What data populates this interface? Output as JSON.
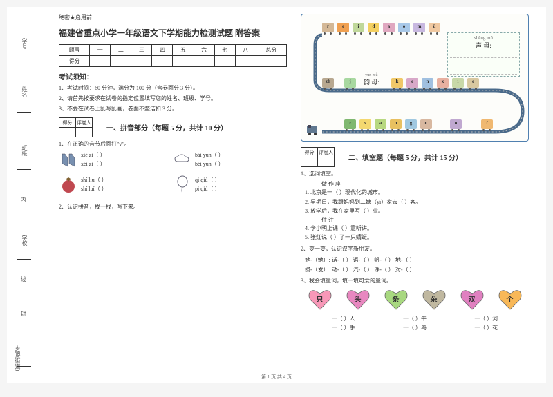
{
  "meta": {
    "secret": "绝密★启用前",
    "title": "福建省重点小学一年级语文下学期能力检测试题 附答案",
    "footer": "第 1 页 共 4 页"
  },
  "spine": {
    "labels": [
      "学号",
      "姓名",
      "班级",
      "内",
      "学校",
      "线",
      "封",
      "乡镇(街道)"
    ]
  },
  "score_table": {
    "headers": [
      "题号",
      "一",
      "二",
      "三",
      "四",
      "五",
      "六",
      "七",
      "八",
      "总分"
    ],
    "row_label": "得分"
  },
  "notice": {
    "title": "考试须知：",
    "items": [
      "1、考试时间：60 分钟，满分为 100 分（含卷面分 3 分）。",
      "2、请首先按要求在试卷的指定位置填写您的姓名、班级、学号。",
      "3、不要在试卷上乱写乱画，卷面不整洁扣 3 分。"
    ]
  },
  "mini_score": {
    "c1": "得分",
    "c2": "评卷人"
  },
  "section1": {
    "title": "一、拼音部分（每题 5 分，共计 10 分）",
    "q1": "1、在正确的音节后面打\"√\"。",
    "items": [
      {
        "a": "xié  zi（      ）",
        "b": "bái  yún（      ）"
      },
      {
        "a": "xéi  zi（      ）",
        "b": "béi  yún（      ）"
      },
      {
        "a": "shí  liu（      ）",
        "b": "qì  qiú（      ）"
      },
      {
        "a": "shí  luí（      ）",
        "b": "pì  qiú（      ）"
      }
    ],
    "q2": "2、认识拼音，找一找，写下来。"
  },
  "train": {
    "top_letters": [
      "r",
      "e",
      "i",
      "d",
      "a",
      "o",
      "m",
      "ü"
    ],
    "mid_letters": [
      "zh",
      "j",
      "k",
      "e",
      "n",
      "x",
      "i",
      "e"
    ],
    "bot_letters": [
      "z",
      "s",
      "a",
      "n",
      "g",
      "u",
      "o",
      "f"
    ],
    "top_colors": [
      "#d4b896",
      "#f0a050",
      "#c0d89a",
      "#f4d060",
      "#e0a8c0",
      "#a8c8e8",
      "#c8b8e0",
      "#f0c8a0"
    ],
    "mid_colors": [
      "#b8a890",
      "#a8d8a0",
      "#f0c868",
      "#d8a8c8",
      "#a0c0e0",
      "#e8b0a0",
      "#c8d8a8",
      "#d8c8a0"
    ],
    "bot_colors": [
      "#80b870",
      "#f4d870",
      "#b8d880",
      "#e8c060",
      "#a0c8e0",
      "#d8b8a0",
      "#c0a8d0",
      "#f0b870"
    ],
    "shengmu_title": "声 母:",
    "shengmu_py": "shēng mǔ",
    "yunmu_title": "韵 母:",
    "yunmu_py": "yùn mǔ"
  },
  "section2": {
    "title": "二、填空题（每题 5 分，共计 15 分）",
    "q1": "1、选词填空。",
    "q1_words": "做         作       座",
    "q1_items": [
      "1. 北京是一（      ）现代化的城市。",
      "2. 星期日，我跟妈妈到二姨（yí）家去（      ）客。",
      "3. 放学后，我在家里写（      ）业。"
    ],
    "q1_words2": "住       注",
    "q1_items2": [
      "4. 李小明上课（      ）意听讲。",
      "5. 张红说（      ）了一只蜻蜓。"
    ],
    "q2": "2、变一变，认识汉字新朋友。",
    "q2_lines": [
      "她-（她）: 话-（      ）  语-（      ）  帆-（      ）  地-（      ）",
      "拔-（发）: 动-（      ）  汽-（      ）  课-（      ）  对-（      ）"
    ],
    "q3": "3、我会填量词，填一填可爱的量词。"
  },
  "hearts": {
    "labels": [
      "只",
      "头",
      "条",
      "朵",
      "双",
      "个"
    ],
    "colors": [
      "#f898b8",
      "#e888c0",
      "#a8d880",
      "#c0b8a0",
      "#e080c0",
      "#f8b858"
    ]
  },
  "measures": {
    "row1": [
      "一（      ）人",
      "一（      ）牛",
      "一（      ）河"
    ],
    "row2": [
      "一（      ）手",
      "一（      ）鸟",
      "一（      ）花"
    ]
  }
}
